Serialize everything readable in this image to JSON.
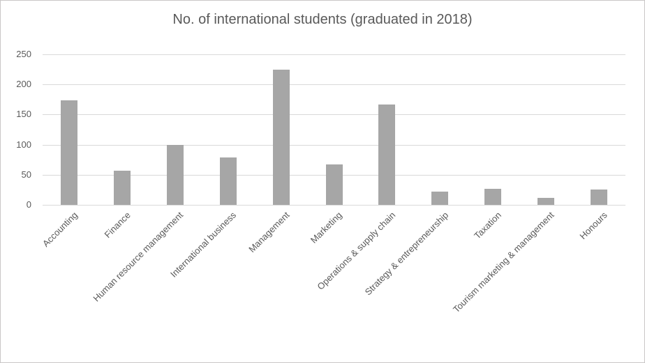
{
  "chart_data": {
    "type": "bar",
    "title": "No. of international students (graduated in 2018)",
    "categories": [
      "Accounting",
      "Finance",
      "Human resource management",
      "International business",
      "Management",
      "Marketing",
      "Operations & supply chain",
      "Strategy & entrepreneurship",
      "Taxation",
      "Tourism marketing & management",
      "Honours"
    ],
    "values": [
      174,
      57,
      100,
      79,
      225,
      67,
      167,
      22,
      27,
      11,
      25
    ],
    "xlabel": "",
    "ylabel": "",
    "ylim": [
      0,
      250
    ],
    "yticks": [
      0,
      50,
      100,
      150,
      200,
      250
    ],
    "grid": true,
    "legend": false,
    "colors": {
      "bar": "#A6A6A6",
      "gridline": "#D9D9D9",
      "axis_line": "#D9D9D9",
      "text": "#595959",
      "border": "#C9C7C7",
      "background": "#FFFFFF"
    }
  }
}
